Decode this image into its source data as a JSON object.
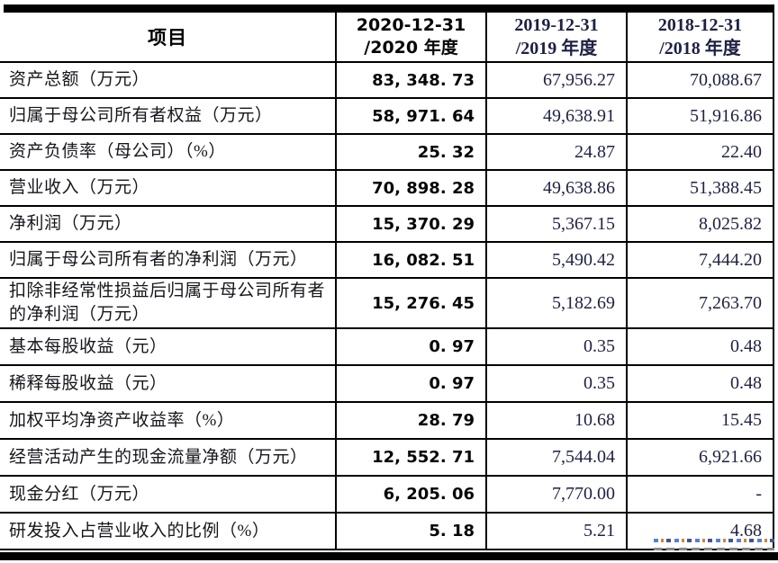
{
  "table": {
    "header": {
      "item_label": "项目",
      "col_2020_line1": "2020-12-31",
      "col_2020_line2": "/2020 年度",
      "col_2019_line1": "2019-12-31",
      "col_2019_line2": "/2019 年度",
      "col_2018_line1": "2018-12-31",
      "col_2018_line2": "/2018 年度"
    },
    "rows": [
      {
        "label": "资产总额（万元）",
        "y2020": "83,348.73",
        "y2019": "67,956.27",
        "y2018": "70,088.67"
      },
      {
        "label": "归属于母公司所有者权益（万元）",
        "y2020": "58,971.64",
        "y2019": "49,638.91",
        "y2018": "51,916.86"
      },
      {
        "label": "资产负债率（母公司）（%）",
        "y2020": "25.32",
        "y2019": "24.87",
        "y2018": "22.40"
      },
      {
        "label": "营业收入（万元）",
        "y2020": "70,898.28",
        "y2019": "49,638.86",
        "y2018": "51,388.45"
      },
      {
        "label": "净利润（万元）",
        "y2020": "15,370.29",
        "y2019": "5,367.15",
        "y2018": "8,025.82"
      },
      {
        "label": "归属于母公司所有者的净利润（万元）",
        "y2020": "16,082.51",
        "y2019": "5,490.42",
        "y2018": "7,444.20"
      },
      {
        "label": "扣除非经常性损益后归属于母公司所有者的净利润（万元）",
        "y2020": "15,276.45",
        "y2019": "5,182.69",
        "y2018": "7,263.70"
      },
      {
        "label": "基本每股收益（元）",
        "y2020": "0.97",
        "y2019": "0.35",
        "y2018": "0.48"
      },
      {
        "label": "稀释每股收益（元）",
        "y2020": "0.97",
        "y2019": "0.35",
        "y2018": "0.48"
      },
      {
        "label": "加权平均净资产收益率（%）",
        "y2020": "28.79",
        "y2019": "10.68",
        "y2018": "15.45"
      },
      {
        "label": "经营活动产生的现金流量净额（万元）",
        "y2020": "12,552.71",
        "y2019": "7,544.04",
        "y2018": "6,921.66"
      },
      {
        "label": "现金分红（万元）",
        "y2020": "6,205.06",
        "y2019": "7,770.00",
        "y2018": "-"
      },
      {
        "label": "研发投入占营业收入的比例（%）",
        "y2020": "5.18",
        "y2019": "5.21",
        "y2018": "4.68"
      }
    ]
  },
  "colors": {
    "border": "#000000",
    "ink_black": "#060606",
    "ink_navy": "#1e2142",
    "watermark_blue": "#5b7fd0",
    "watermark_orange": "#c9873c"
  }
}
